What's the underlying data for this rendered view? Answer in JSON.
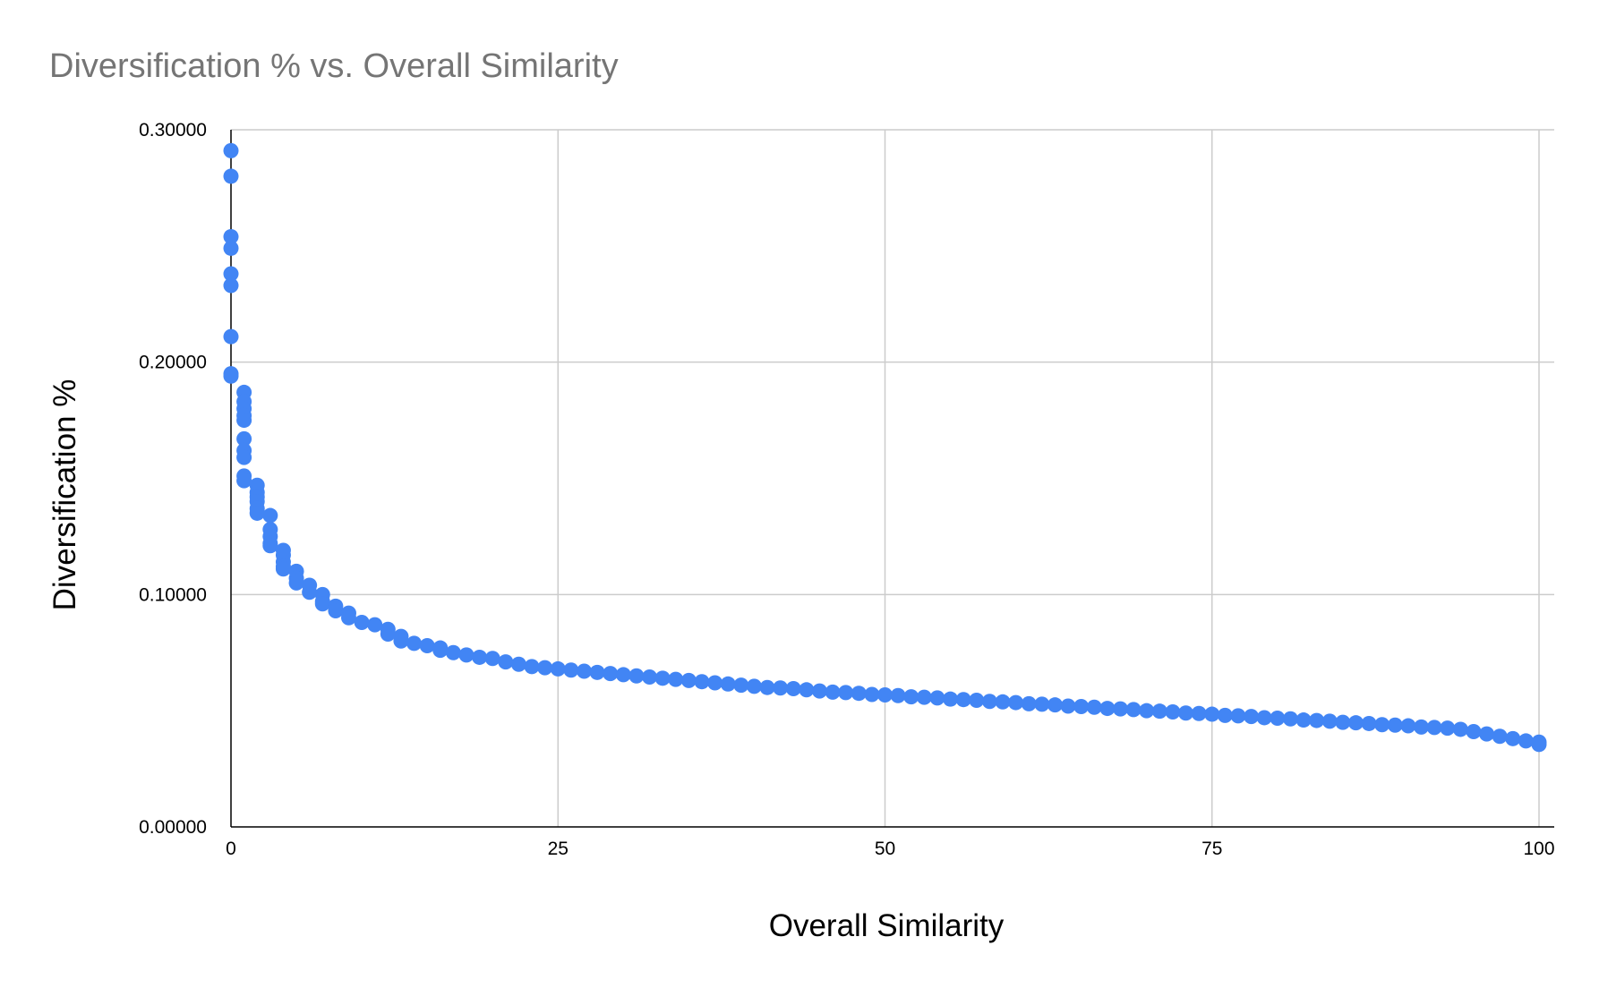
{
  "chart_data": {
    "type": "scatter",
    "title": "Diversification % vs. Overall Similarity",
    "xlabel": "Overall Similarity",
    "ylabel": "Diversification %",
    "xlim": [
      0,
      100
    ],
    "ylim": [
      0,
      0.3
    ],
    "x_ticks": [
      0,
      25,
      50,
      75,
      100
    ],
    "x_tick_labels": [
      "0",
      "25",
      "50",
      "75",
      "100"
    ],
    "y_ticks": [
      0,
      0.1,
      0.2,
      0.3
    ],
    "y_tick_labels": [
      "0.00000",
      "0.10000",
      "0.20000",
      "0.30000"
    ],
    "grid": true,
    "legend": "none",
    "marker_color": "#4285f4",
    "series": [
      {
        "points": [
          [
            0,
            0.291
          ],
          [
            0,
            0.28
          ],
          [
            0,
            0.254
          ],
          [
            0,
            0.249
          ],
          [
            0,
            0.238
          ],
          [
            0,
            0.233
          ],
          [
            0,
            0.211
          ],
          [
            0,
            0.195
          ],
          [
            0,
            0.194
          ],
          [
            1,
            0.187
          ],
          [
            1,
            0.183
          ],
          [
            1,
            0.18
          ],
          [
            1,
            0.177
          ],
          [
            1,
            0.175
          ],
          [
            1,
            0.167
          ],
          [
            1,
            0.162
          ],
          [
            1,
            0.159
          ],
          [
            1,
            0.151
          ],
          [
            1,
            0.149
          ],
          [
            2,
            0.147
          ],
          [
            2,
            0.144
          ],
          [
            2,
            0.142
          ],
          [
            2,
            0.14
          ],
          [
            2,
            0.137
          ],
          [
            2,
            0.135
          ],
          [
            3,
            0.134
          ],
          [
            3,
            0.128
          ],
          [
            3,
            0.125
          ],
          [
            3,
            0.122
          ],
          [
            3,
            0.121
          ],
          [
            4,
            0.119
          ],
          [
            4,
            0.117
          ],
          [
            4,
            0.114
          ],
          [
            4,
            0.112
          ],
          [
            4,
            0.111
          ],
          [
            5,
            0.11
          ],
          [
            5,
            0.107
          ],
          [
            5,
            0.105
          ],
          [
            6,
            0.104
          ],
          [
            6,
            0.101
          ],
          [
            7,
            0.1
          ],
          [
            7,
            0.097
          ],
          [
            7,
            0.096
          ],
          [
            8,
            0.095
          ],
          [
            8,
            0.093
          ],
          [
            9,
            0.092
          ],
          [
            9,
            0.09
          ],
          [
            10,
            0.088
          ],
          [
            11,
            0.087
          ],
          [
            12,
            0.085
          ],
          [
            12,
            0.083
          ],
          [
            13,
            0.082
          ],
          [
            13,
            0.08
          ],
          [
            14,
            0.079
          ],
          [
            15,
            0.078
          ],
          [
            16,
            0.077
          ],
          [
            16,
            0.076
          ],
          [
            17,
            0.075
          ],
          [
            18,
            0.074
          ],
          [
            19,
            0.073
          ],
          [
            20,
            0.0725
          ],
          [
            21,
            0.071
          ],
          [
            22,
            0.07
          ],
          [
            23,
            0.069
          ],
          [
            24,
            0.0685
          ],
          [
            25,
            0.068
          ],
          [
            26,
            0.0675
          ],
          [
            27,
            0.067
          ],
          [
            28,
            0.0665
          ],
          [
            29,
            0.066
          ],
          [
            30,
            0.0655
          ],
          [
            31,
            0.065
          ],
          [
            32,
            0.0645
          ],
          [
            33,
            0.064
          ],
          [
            34,
            0.0635
          ],
          [
            35,
            0.063
          ],
          [
            36,
            0.0625
          ],
          [
            37,
            0.062
          ],
          [
            38,
            0.0615
          ],
          [
            39,
            0.061
          ],
          [
            40,
            0.0605
          ],
          [
            41,
            0.06
          ],
          [
            42,
            0.0598
          ],
          [
            43,
            0.0595
          ],
          [
            44,
            0.059
          ],
          [
            45,
            0.0585
          ],
          [
            46,
            0.058
          ],
          [
            47,
            0.0578
          ],
          [
            48,
            0.0575
          ],
          [
            49,
            0.057
          ],
          [
            50,
            0.0568
          ],
          [
            51,
            0.0565
          ],
          [
            52,
            0.056
          ],
          [
            53,
            0.0558
          ],
          [
            54,
            0.0555
          ],
          [
            55,
            0.055
          ],
          [
            56,
            0.0548
          ],
          [
            57,
            0.0545
          ],
          [
            58,
            0.054
          ],
          [
            59,
            0.0538
          ],
          [
            60,
            0.0535
          ],
          [
            61,
            0.053
          ],
          [
            62,
            0.0528
          ],
          [
            63,
            0.0525
          ],
          [
            64,
            0.052
          ],
          [
            65,
            0.0518
          ],
          [
            66,
            0.0515
          ],
          [
            67,
            0.051
          ],
          [
            68,
            0.0508
          ],
          [
            69,
            0.0505
          ],
          [
            70,
            0.05
          ],
          [
            71,
            0.0498
          ],
          [
            72,
            0.0495
          ],
          [
            73,
            0.049
          ],
          [
            74,
            0.0488
          ],
          [
            75,
            0.0485
          ],
          [
            76,
            0.048
          ],
          [
            77,
            0.0478
          ],
          [
            78,
            0.0475
          ],
          [
            79,
            0.047
          ],
          [
            80,
            0.0468
          ],
          [
            81,
            0.0465
          ],
          [
            82,
            0.046
          ],
          [
            83,
            0.0458
          ],
          [
            84,
            0.0455
          ],
          [
            85,
            0.045
          ],
          [
            86,
            0.0448
          ],
          [
            87,
            0.0445
          ],
          [
            88,
            0.044
          ],
          [
            89,
            0.0438
          ],
          [
            90,
            0.0435
          ],
          [
            91,
            0.043
          ],
          [
            92,
            0.0428
          ],
          [
            93,
            0.0425
          ],
          [
            94,
            0.042
          ],
          [
            95,
            0.041
          ],
          [
            96,
            0.04
          ],
          [
            97,
            0.039
          ],
          [
            98,
            0.038
          ],
          [
            99,
            0.037
          ],
          [
            100,
            0.0365
          ],
          [
            100,
            0.0355
          ]
        ]
      }
    ]
  }
}
